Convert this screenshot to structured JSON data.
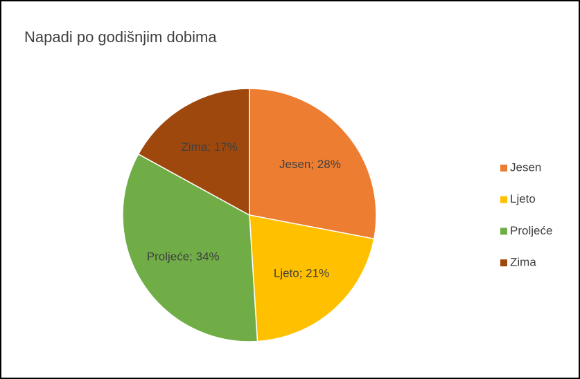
{
  "chart_data": {
    "type": "pie",
    "title": "Napadi po godišnjim dobima",
    "categories": [
      "Jesen",
      "Ljeto",
      "Proljeće",
      "Zima"
    ],
    "values": [
      28,
      21,
      34,
      17
    ],
    "value_labels": [
      "Jesen; 28%",
      "Ljeto; 21%",
      "Proljeće; 34%",
      "Zima; 17%"
    ],
    "colors": [
      "#ed7d31",
      "#ffc000",
      "#70ad47",
      "#9e480e"
    ],
    "legend": "right"
  }
}
